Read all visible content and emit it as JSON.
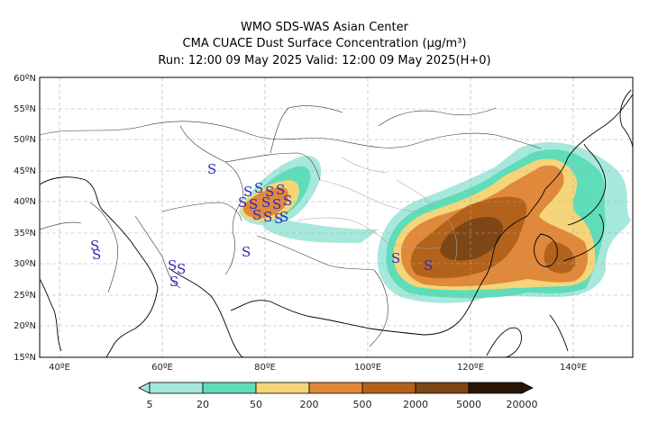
{
  "header": {
    "line1": "WMO SDS-WAS Asian Center",
    "line2": "CMA CUACE Dust Surface Concentration (μg/m³)",
    "line3": "Run: 12:00 09 May 2025     Valid: 12:00 09 May 2025(H+0)"
  },
  "map": {
    "lon_range": [
      35,
      150
    ],
    "lat_range": [
      15,
      60
    ],
    "lon_ticks": [
      "40ºE",
      "60ºE",
      "80ºE",
      "100ºE",
      "120ºE",
      "140ºE"
    ],
    "lat_ticks": [
      "15ºN",
      "20ºN",
      "25ºN",
      "30ºN",
      "35ºN",
      "40ºN",
      "45ºN",
      "50ºN",
      "55ºN",
      "60ºN"
    ],
    "gridlines": true,
    "dust_storm_symbol": "S",
    "symbol_color": "#2a2ab8"
  },
  "colorbar": {
    "levels": [
      "5",
      "20",
      "50",
      "200",
      "500",
      "2000",
      "5000",
      "20000"
    ],
    "colors": [
      "#a6e8dc",
      "#5fdcb8",
      "#f5d57a",
      "#e0893a",
      "#b3621c",
      "#7d4614",
      "#4a2a0c",
      "#2a1606"
    ]
  }
}
